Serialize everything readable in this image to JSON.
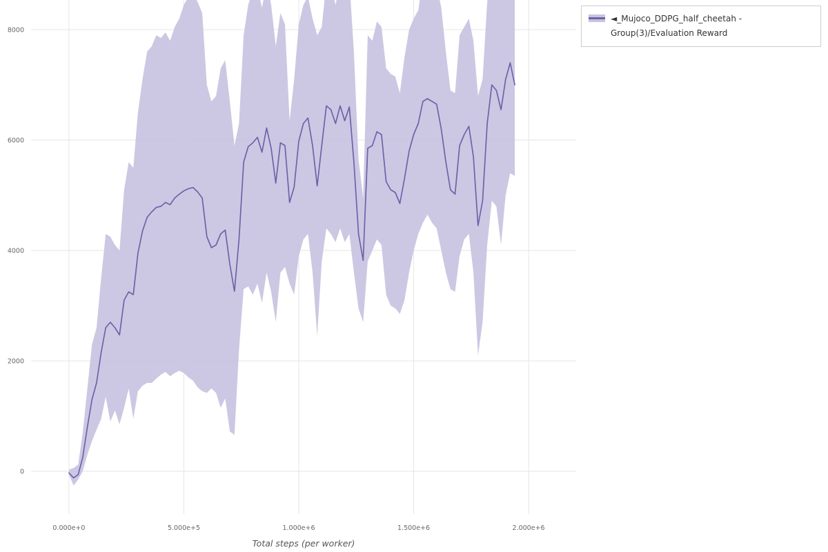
{
  "page": {
    "background": "#ffffff"
  },
  "legend": {
    "label": "◄_Mujoco_DDPG_half_cheetah - Group(3)/Evaluation Reward",
    "line_color": "#6c63a9",
    "band_color": "#c7c2e0",
    "position": "top-right"
  },
  "chart_data": {
    "type": "line",
    "title": "",
    "xlabel": "Total steps (per worker)",
    "ylabel": "",
    "grid": true,
    "grid_color": "#e5e5e5",
    "xlim": [
      -165000,
      2207000
    ],
    "ylim": [
      -775,
      8537
    ],
    "x_ticks": [
      {
        "value": 0,
        "label": "0.000e+0"
      },
      {
        "value": 500000,
        "label": "5.000e+5"
      },
      {
        "value": 1000000,
        "label": "1.000e+6"
      },
      {
        "value": 1500000,
        "label": "1.500e+6"
      },
      {
        "value": 2000000,
        "label": "2.000e+6"
      }
    ],
    "y_ticks": [
      {
        "value": 0,
        "label": "0"
      },
      {
        "value": 2000,
        "label": "2000"
      },
      {
        "value": 4000,
        "label": "4000"
      },
      {
        "value": 6000,
        "label": "6000"
      },
      {
        "value": 8000,
        "label": "8000"
      }
    ],
    "series": [
      {
        "name": "◄_Mujoco_DDPG_half_cheetah - Group(3)/Evaluation Reward",
        "color": "#6c63a9",
        "band_color": "#c7c2e0",
        "band_opacity": 0.9,
        "x": [
          0,
          20000,
          40000,
          60000,
          80000,
          100000,
          120000,
          140000,
          160000,
          180000,
          200000,
          220000,
          240000,
          260000,
          280000,
          300000,
          320000,
          340000,
          360000,
          380000,
          400000,
          420000,
          440000,
          460000,
          480000,
          500000,
          520000,
          540000,
          560000,
          580000,
          600000,
          620000,
          640000,
          660000,
          680000,
          700000,
          720000,
          740000,
          760000,
          780000,
          800000,
          820000,
          840000,
          860000,
          880000,
          900000,
          920000,
          940000,
          960000,
          980000,
          1000000,
          1020000,
          1040000,
          1060000,
          1080000,
          1100000,
          1120000,
          1140000,
          1160000,
          1180000,
          1200000,
          1220000,
          1240000,
          1260000,
          1280000,
          1300000,
          1320000,
          1340000,
          1360000,
          1380000,
          1400000,
          1420000,
          1440000,
          1460000,
          1480000,
          1500000,
          1520000,
          1540000,
          1560000,
          1580000,
          1600000,
          1620000,
          1640000,
          1660000,
          1680000,
          1700000,
          1720000,
          1740000,
          1760000,
          1780000,
          1800000,
          1820000,
          1840000,
          1860000,
          1880000,
          1900000,
          1920000,
          1940000
        ],
        "mean": [
          -30,
          -120,
          -60,
          250,
          800,
          1300,
          1600,
          2150,
          2600,
          2700,
          2600,
          2470,
          3100,
          3250,
          3200,
          3950,
          4350,
          4600,
          4700,
          4780,
          4800,
          4870,
          4830,
          4950,
          5020,
          5080,
          5120,
          5140,
          5060,
          4950,
          4250,
          4050,
          4100,
          4300,
          4370,
          3750,
          3260,
          4200,
          5600,
          5880,
          5950,
          6050,
          5780,
          6220,
          5850,
          5220,
          5950,
          5900,
          4870,
          5150,
          5980,
          6300,
          6400,
          5900,
          5170,
          5900,
          6620,
          6550,
          6300,
          6620,
          6350,
          6600,
          5600,
          4300,
          3820,
          5850,
          5900,
          6150,
          6100,
          5250,
          5100,
          5050,
          4850,
          5300,
          5800,
          6100,
          6300,
          6700,
          6750,
          6700,
          6650,
          6200,
          5600,
          5100,
          5020,
          5900,
          6100,
          6250,
          5700,
          4450,
          4900,
          6300,
          7000,
          6900,
          6550,
          7100,
          7400,
          7000
        ],
        "lower": [
          -60,
          -260,
          -150,
          0,
          300,
          550,
          750,
          950,
          1350,
          900,
          1100,
          850,
          1150,
          1500,
          950,
          1450,
          1550,
          1600,
          1600,
          1680,
          1750,
          1800,
          1720,
          1780,
          1820,
          1780,
          1700,
          1640,
          1520,
          1450,
          1420,
          1500,
          1420,
          1150,
          1320,
          720,
          660,
          2200,
          3300,
          3350,
          3200,
          3400,
          3050,
          3600,
          3250,
          2700,
          3600,
          3700,
          3400,
          3200,
          3900,
          4200,
          4300,
          3600,
          2450,
          3800,
          4400,
          4300,
          4150,
          4400,
          4150,
          4300,
          3600,
          2950,
          2700,
          3800,
          4000,
          4200,
          4100,
          3200,
          3000,
          2950,
          2850,
          3100,
          3600,
          4000,
          4300,
          4500,
          4650,
          4500,
          4400,
          4000,
          3600,
          3300,
          3250,
          3900,
          4200,
          4300,
          3600,
          2100,
          2700,
          4100,
          4900,
          4800,
          4100,
          5000,
          5400,
          5350
        ],
        "upper": [
          30,
          60,
          120,
          700,
          1500,
          2300,
          2600,
          3500,
          4300,
          4250,
          4100,
          4000,
          5100,
          5600,
          5500,
          6500,
          7100,
          7600,
          7700,
          7900,
          7850,
          7950,
          7800,
          8050,
          8200,
          8450,
          8600,
          8650,
          8500,
          8300,
          7000,
          6700,
          6800,
          7300,
          7450,
          6700,
          5900,
          6300,
          7900,
          8450,
          8700,
          8750,
          8400,
          8850,
          8450,
          7700,
          8300,
          8100,
          6350,
          7100,
          8100,
          8450,
          8600,
          8200,
          7900,
          8050,
          8850,
          8800,
          8450,
          8850,
          8550,
          8900,
          7600,
          5650,
          4950,
          7900,
          7800,
          8150,
          8050,
          7300,
          7200,
          7150,
          6850,
          7500,
          8000,
          8200,
          8350,
          8950,
          8900,
          8950,
          8800,
          8400,
          7600,
          6900,
          6850,
          7900,
          8050,
          8200,
          7800,
          6800,
          7100,
          8500,
          9000,
          9000,
          9000,
          9200,
          9400,
          8800
        ]
      }
    ]
  }
}
